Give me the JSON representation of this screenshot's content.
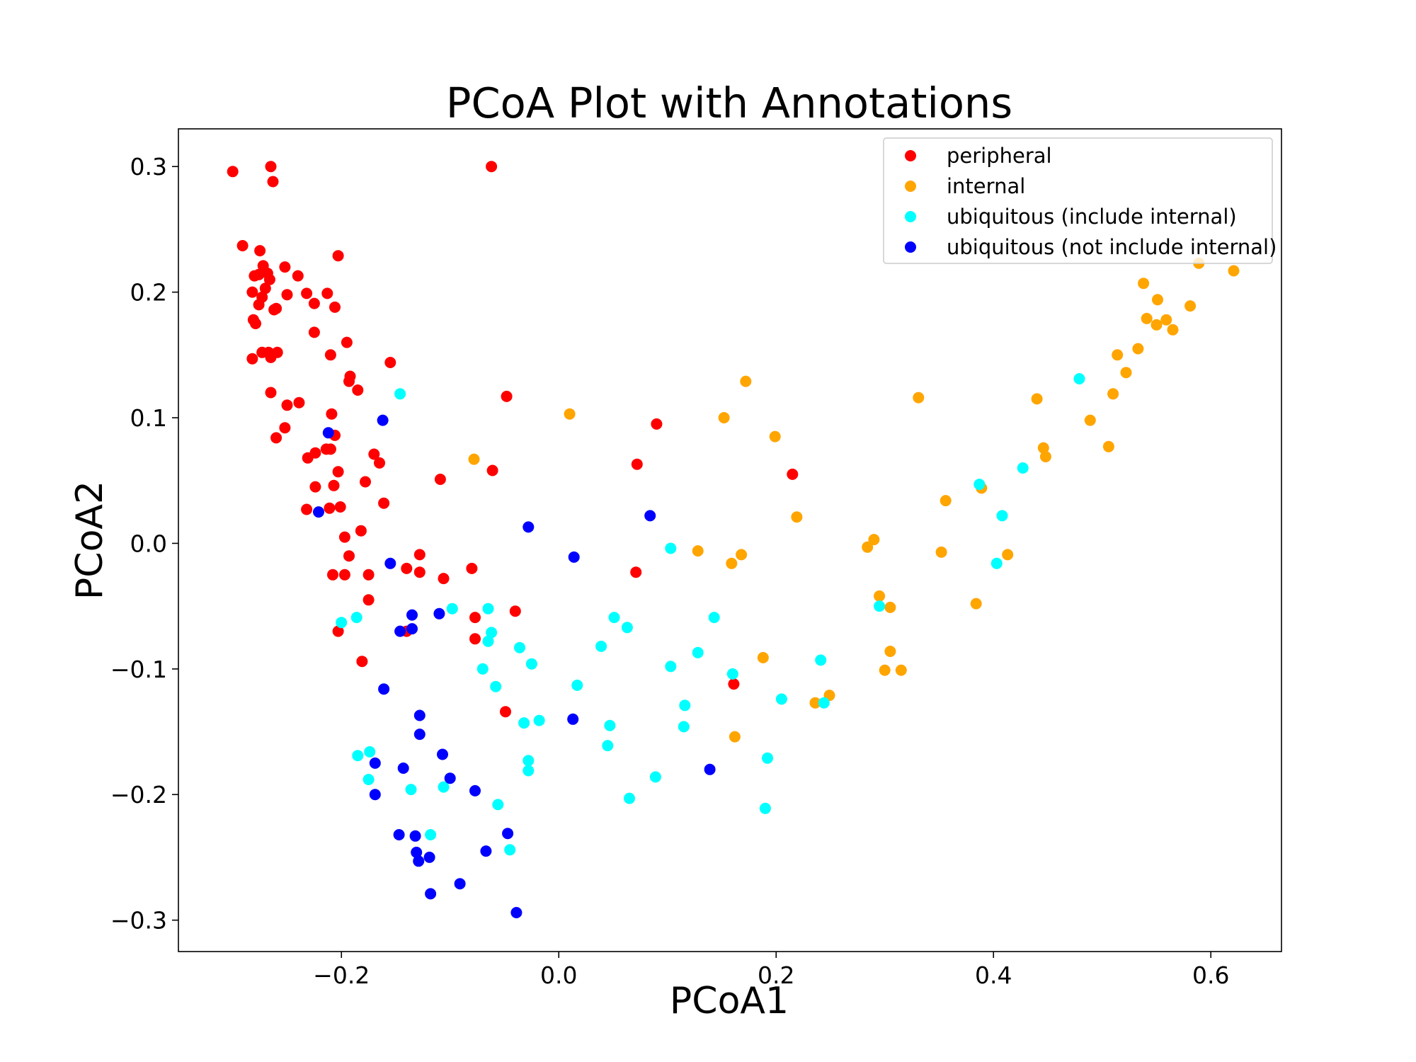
{
  "chart_data": {
    "type": "scatter",
    "title": "PCoA Plot with Annotations",
    "xlabel": "PCoA1",
    "ylabel": "PCoA2",
    "xlim": [
      -0.35,
      0.665
    ],
    "ylim": [
      -0.325,
      0.33
    ],
    "x_ticks": [
      -0.2,
      0.0,
      0.2,
      0.4,
      0.6
    ],
    "x_tick_labels": [
      "−0.2",
      "0.0",
      "0.2",
      "0.4",
      "0.6"
    ],
    "y_ticks": [
      0.3,
      0.2,
      0.1,
      0.0,
      -0.1,
      -0.2,
      -0.3
    ],
    "y_tick_labels": [
      "0.3",
      "0.2",
      "0.1",
      "0.0",
      "−0.1",
      "−0.2",
      "−0.3"
    ],
    "grid": false,
    "legend_position": "upper right",
    "series": [
      {
        "name": "peripheral",
        "color": "#ff0000",
        "points": [
          [
            -0.3,
            0.296
          ],
          [
            -0.265,
            0.3
          ],
          [
            -0.263,
            0.288
          ],
          [
            -0.062,
            0.3
          ],
          [
            -0.291,
            0.237
          ],
          [
            -0.275,
            0.233
          ],
          [
            -0.272,
            0.221
          ],
          [
            -0.268,
            0.215
          ],
          [
            -0.28,
            0.213
          ],
          [
            -0.276,
            0.214
          ],
          [
            -0.266,
            0.21
          ],
          [
            -0.27,
            0.203
          ],
          [
            -0.282,
            0.2
          ],
          [
            -0.273,
            0.196
          ],
          [
            -0.276,
            0.19
          ],
          [
            -0.262,
            0.186
          ],
          [
            -0.26,
            0.187
          ],
          [
            -0.281,
            0.178
          ],
          [
            -0.279,
            0.175
          ],
          [
            -0.252,
            0.22
          ],
          [
            -0.24,
            0.213
          ],
          [
            -0.232,
            0.199
          ],
          [
            -0.25,
            0.198
          ],
          [
            -0.225,
            0.191
          ],
          [
            -0.213,
            0.199
          ],
          [
            -0.206,
            0.188
          ],
          [
            -0.203,
            0.229
          ],
          [
            -0.225,
            0.168
          ],
          [
            -0.273,
            0.152
          ],
          [
            -0.267,
            0.152
          ],
          [
            -0.259,
            0.152
          ],
          [
            -0.265,
            0.148
          ],
          [
            -0.282,
            0.147
          ],
          [
            -0.195,
            0.16
          ],
          [
            -0.21,
            0.15
          ],
          [
            -0.192,
            0.133
          ],
          [
            -0.193,
            0.129
          ],
          [
            -0.185,
            0.122
          ],
          [
            -0.155,
            0.144
          ],
          [
            -0.265,
            0.12
          ],
          [
            -0.25,
            0.11
          ],
          [
            -0.239,
            0.112
          ],
          [
            -0.209,
            0.103
          ],
          [
            -0.252,
            0.092
          ],
          [
            -0.26,
            0.084
          ],
          [
            -0.206,
            0.086
          ],
          [
            -0.214,
            0.075
          ],
          [
            -0.21,
            0.075
          ],
          [
            -0.224,
            0.072
          ],
          [
            -0.231,
            0.068
          ],
          [
            -0.17,
            0.071
          ],
          [
            -0.165,
            0.064
          ],
          [
            -0.203,
            0.057
          ],
          [
            -0.224,
            0.045
          ],
          [
            -0.207,
            0.046
          ],
          [
            -0.178,
            0.049
          ],
          [
            -0.109,
            0.051
          ],
          [
            -0.061,
            0.058
          ],
          [
            -0.048,
            0.117
          ],
          [
            -0.232,
            0.027
          ],
          [
            -0.211,
            0.028
          ],
          [
            -0.201,
            0.029
          ],
          [
            -0.161,
            0.032
          ],
          [
            -0.182,
            0.01
          ],
          [
            -0.197,
            0.005
          ],
          [
            -0.128,
            -0.009
          ],
          [
            -0.193,
            -0.01
          ],
          [
            -0.14,
            -0.02
          ],
          [
            -0.08,
            -0.02
          ],
          [
            -0.208,
            -0.025
          ],
          [
            -0.197,
            -0.025
          ],
          [
            -0.175,
            -0.025
          ],
          [
            -0.128,
            -0.023
          ],
          [
            -0.106,
            -0.028
          ],
          [
            -0.175,
            -0.045
          ],
          [
            -0.077,
            -0.059
          ],
          [
            -0.04,
            -0.054
          ],
          [
            -0.203,
            -0.07
          ],
          [
            -0.14,
            -0.07
          ],
          [
            -0.077,
            -0.076
          ],
          [
            -0.181,
            -0.094
          ],
          [
            -0.049,
            -0.134
          ],
          [
            0.09,
            0.095
          ],
          [
            0.072,
            0.063
          ],
          [
            0.215,
            0.055
          ],
          [
            0.071,
            -0.023
          ],
          [
            0.161,
            -0.112
          ]
        ]
      },
      {
        "name": "internal",
        "color": "#ffa500",
        "points": [
          [
            0.589,
            0.223
          ],
          [
            0.621,
            0.217
          ],
          [
            0.538,
            0.207
          ],
          [
            0.551,
            0.194
          ],
          [
            0.581,
            0.189
          ],
          [
            0.541,
            0.179
          ],
          [
            0.559,
            0.178
          ],
          [
            0.55,
            0.174
          ],
          [
            0.565,
            0.17
          ],
          [
            0.514,
            0.15
          ],
          [
            0.533,
            0.155
          ],
          [
            0.522,
            0.136
          ],
          [
            0.51,
            0.119
          ],
          [
            0.44,
            0.115
          ],
          [
            0.331,
            0.116
          ],
          [
            0.172,
            0.129
          ],
          [
            0.152,
            0.1
          ],
          [
            0.01,
            0.103
          ],
          [
            0.199,
            0.085
          ],
          [
            0.489,
            0.098
          ],
          [
            0.446,
            0.076
          ],
          [
            0.448,
            0.069
          ],
          [
            0.506,
            0.077
          ],
          [
            -0.078,
            0.067
          ],
          [
            0.356,
            0.034
          ],
          [
            0.389,
            0.044
          ],
          [
            0.219,
            0.021
          ],
          [
            0.29,
            0.003
          ],
          [
            0.284,
            -0.003
          ],
          [
            0.352,
            -0.007
          ],
          [
            0.128,
            -0.006
          ],
          [
            0.168,
            -0.009
          ],
          [
            0.413,
            -0.009
          ],
          [
            0.159,
            -0.016
          ],
          [
            0.384,
            -0.048
          ],
          [
            0.295,
            -0.042
          ],
          [
            0.305,
            -0.051
          ],
          [
            0.305,
            -0.086
          ],
          [
            0.188,
            -0.091
          ],
          [
            0.3,
            -0.101
          ],
          [
            0.315,
            -0.101
          ],
          [
            0.249,
            -0.121
          ],
          [
            0.236,
            -0.127
          ],
          [
            0.162,
            -0.154
          ]
        ]
      },
      {
        "name": "ubiquitous (include internal)",
        "color": "#00ffff",
        "points": [
          [
            -0.146,
            0.119
          ],
          [
            0.479,
            0.131
          ],
          [
            0.427,
            0.06
          ],
          [
            0.387,
            0.047
          ],
          [
            0.408,
            0.022
          ],
          [
            0.403,
            -0.016
          ],
          [
            0.103,
            -0.004
          ],
          [
            0.295,
            -0.05
          ],
          [
            -0.2,
            -0.063
          ],
          [
            -0.186,
            -0.059
          ],
          [
            -0.098,
            -0.052
          ],
          [
            -0.065,
            -0.052
          ],
          [
            -0.062,
            -0.071
          ],
          [
            -0.065,
            -0.078
          ],
          [
            0.051,
            -0.059
          ],
          [
            0.063,
            -0.067
          ],
          [
            0.143,
            -0.059
          ],
          [
            0.039,
            -0.082
          ],
          [
            -0.036,
            -0.083
          ],
          [
            -0.07,
            -0.1
          ],
          [
            -0.025,
            -0.096
          ],
          [
            0.103,
            -0.098
          ],
          [
            0.128,
            -0.087
          ],
          [
            0.241,
            -0.093
          ],
          [
            0.16,
            -0.104
          ],
          [
            -0.058,
            -0.114
          ],
          [
            0.017,
            -0.113
          ],
          [
            0.205,
            -0.124
          ],
          [
            0.116,
            -0.129
          ],
          [
            0.244,
            -0.127
          ],
          [
            -0.032,
            -0.143
          ],
          [
            -0.018,
            -0.141
          ],
          [
            0.047,
            -0.145
          ],
          [
            0.115,
            -0.146
          ],
          [
            -0.185,
            -0.169
          ],
          [
            -0.174,
            -0.166
          ],
          [
            -0.028,
            -0.173
          ],
          [
            -0.028,
            -0.181
          ],
          [
            0.045,
            -0.161
          ],
          [
            0.192,
            -0.171
          ],
          [
            -0.175,
            -0.188
          ],
          [
            -0.136,
            -0.196
          ],
          [
            -0.106,
            -0.194
          ],
          [
            0.089,
            -0.186
          ],
          [
            0.065,
            -0.203
          ],
          [
            -0.056,
            -0.208
          ],
          [
            0.19,
            -0.211
          ],
          [
            -0.118,
            -0.232
          ],
          [
            -0.045,
            -0.244
          ]
        ]
      },
      {
        "name": "ubiquitous (not include internal)",
        "color": "#0000ff",
        "points": [
          [
            -0.162,
            0.098
          ],
          [
            -0.212,
            0.088
          ],
          [
            -0.221,
            0.025
          ],
          [
            0.084,
            0.022
          ],
          [
            -0.028,
            0.013
          ],
          [
            0.014,
            -0.011
          ],
          [
            -0.155,
            -0.016
          ],
          [
            -0.135,
            -0.057
          ],
          [
            -0.11,
            -0.056
          ],
          [
            -0.146,
            -0.07
          ],
          [
            -0.135,
            -0.068
          ],
          [
            -0.161,
            -0.116
          ],
          [
            0.013,
            -0.14
          ],
          [
            -0.128,
            -0.137
          ],
          [
            -0.128,
            -0.152
          ],
          [
            -0.107,
            -0.168
          ],
          [
            0.139,
            -0.18
          ],
          [
            -0.169,
            -0.175
          ],
          [
            -0.143,
            -0.179
          ],
          [
            -0.1,
            -0.187
          ],
          [
            -0.077,
            -0.197
          ],
          [
            -0.169,
            -0.2
          ],
          [
            -0.147,
            -0.232
          ],
          [
            -0.132,
            -0.233
          ],
          [
            -0.047,
            -0.231
          ],
          [
            -0.131,
            -0.246
          ],
          [
            -0.119,
            -0.25
          ],
          [
            -0.129,
            -0.253
          ],
          [
            -0.067,
            -0.245
          ],
          [
            -0.118,
            -0.279
          ],
          [
            -0.091,
            -0.271
          ],
          [
            -0.039,
            -0.294
          ]
        ]
      }
    ]
  }
}
